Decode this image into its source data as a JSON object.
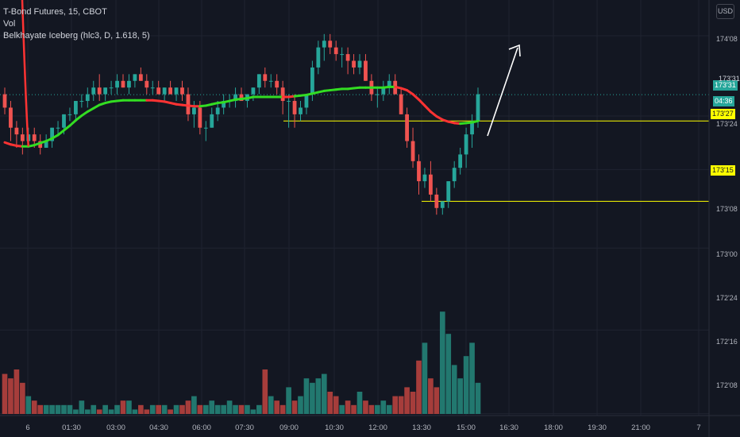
{
  "header": {
    "title": "T-Bond Futures, 15, CBOT",
    "vol_label": "Vol",
    "indicator_label": "Belkhayate Iceberg (hlc3, D, 1.618, 5)",
    "currency": "USD"
  },
  "price_tags": {
    "last": "173'31",
    "countdown": "04:36",
    "resistance": "173'27",
    "support": "173'15",
    "partial": "173'31"
  },
  "colors": {
    "background": "#131722",
    "up": "#26a69a",
    "down": "#ef5350",
    "up_volume": "#22786f",
    "down_volume": "#a63d3b",
    "indicator_up": "#33dd22",
    "indicator_down": "#ff3333",
    "level_line": "#ffff00",
    "arrow": "#ffffff"
  },
  "chart_data": {
    "type": "candlestick",
    "title": "T-Bond Futures, 15, CBOT",
    "x_tick_labels": [
      "6",
      "01:30",
      "03:00",
      "04:30",
      "06:00",
      "07:30",
      "09:00",
      "10:30",
      "12:00",
      "13:30",
      "15:00",
      "16:30",
      "18:00",
      "19:30",
      "21:00",
      "7"
    ],
    "y_tick_labels": [
      "174'08",
      "173'24",
      "173'08",
      "173'00",
      "172'24",
      "172'16",
      "172'08"
    ],
    "y_unit": "price in 32nds, plotted as 32nds above 172",
    "ylim": [
      35,
      77
    ],
    "horizontal_levels": [
      {
        "label": "173'27",
        "value": 59
      },
      {
        "label": "173'15",
        "value": 47
      }
    ],
    "bar_interval": "15 minutes",
    "candles": [
      [
        63,
        64,
        60,
        61
      ],
      [
        61,
        62,
        56,
        58
      ],
      [
        58,
        59,
        55,
        57
      ],
      [
        57,
        58,
        54,
        56
      ],
      [
        56,
        58,
        55,
        57
      ],
      [
        57,
        58,
        55,
        56
      ],
      [
        56,
        57,
        54,
        55
      ],
      [
        55,
        57,
        55,
        56
      ],
      [
        56,
        58,
        55,
        58
      ],
      [
        58,
        59,
        57,
        58
      ],
      [
        58,
        60,
        57,
        60
      ],
      [
        60,
        61,
        59,
        60
      ],
      [
        60,
        62,
        59,
        62
      ],
      [
        62,
        63,
        61,
        62
      ],
      [
        62,
        64,
        61,
        63
      ],
      [
        63,
        65,
        62,
        64
      ],
      [
        64,
        66,
        62,
        63
      ],
      [
        63,
        64,
        62,
        64
      ],
      [
        64,
        65,
        63,
        64
      ],
      [
        64,
        66,
        63,
        65
      ],
      [
        65,
        66,
        64,
        64
      ],
      [
        64,
        66,
        63,
        65
      ],
      [
        65,
        66,
        64,
        66
      ],
      [
        66,
        67,
        65,
        65
      ],
      [
        65,
        66,
        63,
        64
      ],
      [
        64,
        65,
        63,
        64
      ],
      [
        64,
        65,
        63,
        63
      ],
      [
        63,
        64,
        62,
        64
      ],
      [
        64,
        65,
        63,
        63
      ],
      [
        63,
        64,
        62,
        64
      ],
      [
        64,
        65,
        62,
        63
      ],
      [
        63,
        64,
        59,
        60
      ],
      [
        60,
        62,
        58,
        61
      ],
      [
        61,
        62,
        57,
        58
      ],
      [
        58,
        59,
        56,
        58
      ],
      [
        58,
        61,
        58,
        60
      ],
      [
        60,
        62,
        59,
        61
      ],
      [
        61,
        63,
        60,
        62
      ],
      [
        62,
        63,
        61,
        62
      ],
      [
        62,
        64,
        61,
        63
      ],
      [
        63,
        64,
        62,
        62
      ],
      [
        62,
        63,
        61,
        63
      ],
      [
        63,
        64,
        62,
        64
      ],
      [
        64,
        66,
        63,
        66
      ],
      [
        66,
        67,
        64,
        65
      ],
      [
        65,
        66,
        64,
        65
      ],
      [
        65,
        66,
        63,
        64
      ],
      [
        64,
        65,
        60,
        62
      ],
      [
        62,
        63,
        58,
        62
      ],
      [
        62,
        63,
        58,
        60
      ],
      [
        60,
        62,
        59,
        61
      ],
      [
        61,
        63,
        60,
        63
      ],
      [
        63,
        68,
        62,
        67
      ],
      [
        67,
        71,
        66,
        70
      ],
      [
        70,
        72,
        68,
        71
      ],
      [
        71,
        72,
        69,
        70
      ],
      [
        70,
        71,
        68,
        69
      ],
      [
        69,
        70,
        67,
        69
      ],
      [
        69,
        70,
        66,
        68
      ],
      [
        68,
        69,
        66,
        67
      ],
      [
        67,
        69,
        66,
        68
      ],
      [
        68,
        69,
        65,
        65
      ],
      [
        65,
        66,
        62,
        63
      ],
      [
        63,
        64,
        61,
        63
      ],
      [
        63,
        65,
        62,
        64
      ],
      [
        64,
        66,
        63,
        65
      ],
      [
        65,
        66,
        63,
        63
      ],
      [
        63,
        64,
        60,
        60
      ],
      [
        60,
        61,
        55,
        56
      ],
      [
        56,
        58,
        52,
        53
      ],
      [
        53,
        54,
        48,
        50
      ],
      [
        50,
        52,
        49,
        51
      ],
      [
        51,
        53,
        47,
        48
      ],
      [
        48,
        49,
        45,
        46
      ],
      [
        46,
        47,
        45,
        47
      ],
      [
        47,
        50,
        46,
        50
      ],
      [
        50,
        53,
        49,
        52
      ],
      [
        52,
        55,
        51,
        54
      ],
      [
        54,
        58,
        52,
        57
      ],
      [
        57,
        60,
        55,
        59
      ],
      [
        59,
        64,
        58,
        63
      ]
    ],
    "volume": [
      9,
      8,
      10,
      7,
      4,
      3,
      2,
      2,
      2,
      2,
      2,
      2,
      1,
      3,
      1,
      2,
      1,
      2,
      1,
      2,
      3,
      3,
      1,
      2,
      1,
      2,
      2,
      2,
      1,
      2,
      2,
      3,
      4,
      2,
      2,
      3,
      2,
      2,
      3,
      2,
      2,
      2,
      1,
      2,
      10,
      4,
      3,
      2,
      6,
      3,
      4,
      8,
      7,
      8,
      9,
      5,
      4,
      2,
      3,
      2,
      5,
      3,
      2,
      2,
      3,
      2,
      4,
      4,
      6,
      5,
      12,
      16,
      8,
      6,
      23,
      18,
      11,
      8,
      13,
      16,
      7
    ],
    "indicator": [
      55.8,
      55.5,
      55.3,
      55.2,
      55.2,
      55.4,
      55.7,
      56.0,
      56.4,
      56.9,
      57.6,
      58.3,
      59.1,
      59.8,
      60.4,
      60.9,
      61.4,
      61.7,
      61.9,
      62.0,
      62.1,
      62.1,
      62.1,
      62.1,
      62.1,
      62.1,
      62.0,
      61.9,
      61.7,
      61.5,
      61.4,
      61.3,
      61.2,
      61.2,
      61.3,
      61.5,
      61.7,
      61.8,
      62.0,
      62.2,
      62.3,
      62.4,
      62.6,
      62.6,
      62.6,
      62.6,
      62.6,
      62.6,
      62.6,
      62.7,
      62.8,
      62.9,
      63.1,
      63.3,
      63.5,
      63.6,
      63.7,
      63.8,
      63.8,
      63.9,
      64.0,
      64.0,
      64.0,
      64.0,
      64.0,
      64.1,
      64.1,
      63.9,
      63.6,
      63.0,
      62.2,
      61.3,
      60.4,
      59.7,
      59.2,
      58.9,
      58.7,
      58.6,
      58.7,
      58.8,
      59.0
    ],
    "indicator_direction": [
      "down",
      "down",
      "down",
      "down",
      "up",
      "up",
      "up",
      "up",
      "up",
      "up",
      "up",
      "up",
      "up",
      "up",
      "up",
      "up",
      "up",
      "up",
      "up",
      "up",
      "up",
      "up",
      "up",
      "up",
      "up",
      "down",
      "down",
      "down",
      "down",
      "down",
      "down",
      "down",
      "down",
      "down",
      "up",
      "up",
      "up",
      "up",
      "up",
      "up",
      "up",
      "up",
      "up",
      "up",
      "up",
      "up",
      "up",
      "up",
      "down",
      "down",
      "up",
      "up",
      "up",
      "up",
      "up",
      "up",
      "up",
      "up",
      "up",
      "up",
      "up",
      "up",
      "up",
      "up",
      "up",
      "up",
      "up",
      "down",
      "down",
      "down",
      "down",
      "down",
      "down",
      "down",
      "down",
      "down",
      "down",
      "down",
      "up",
      "up",
      "up"
    ],
    "grid": true
  }
}
